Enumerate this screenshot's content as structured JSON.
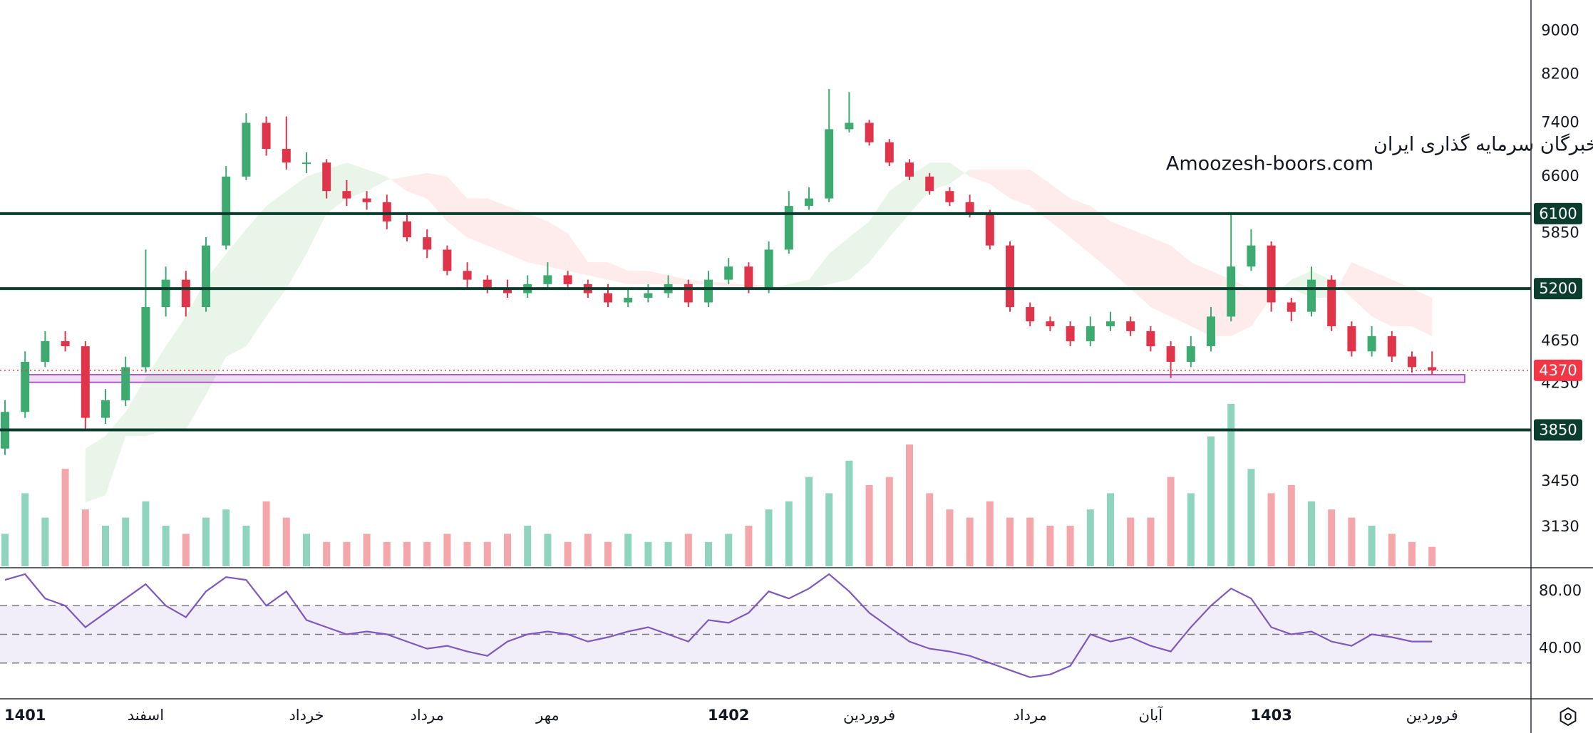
{
  "chart_data": {
    "type": "candlestick",
    "watermark": [
      "انجمن خبرگان سرمایه گذاری ایران",
      "Amoozesh-boors.com"
    ],
    "categories": [
      null,
      "1401",
      null,
      null,
      null,
      null,
      null,
      "اسفند",
      null,
      null,
      null,
      null,
      null,
      null,
      null,
      "خرداد",
      null,
      null,
      null,
      null,
      null,
      "مرداد",
      null,
      null,
      null,
      null,
      null,
      "مهر",
      null,
      null,
      null,
      null,
      null,
      null,
      null,
      null,
      "1402",
      null,
      null,
      null,
      null,
      null,
      null,
      "فروردین",
      null,
      null,
      null,
      null,
      null,
      null,
      null,
      "مرداد",
      null,
      null,
      null,
      null,
      null,
      "آبان",
      null,
      null,
      null,
      null,
      null,
      "1403",
      null,
      null,
      null,
      null,
      null,
      null,
      null,
      "فروردین"
    ],
    "open": [
      3700,
      4000,
      4450,
      4650,
      4600,
      3950,
      4100,
      4400,
      5000,
      5300,
      5000,
      5700,
      6600,
      7400,
      7000,
      6800,
      6800,
      6400,
      6300,
      6250,
      6000,
      5800,
      5650,
      5400,
      5300,
      5200,
      5150,
      5250,
      5350,
      5250,
      5150,
      5050,
      5100,
      5150,
      5250,
      5050,
      5300,
      5450,
      5200,
      5650,
      6200,
      6300,
      7300,
      7400,
      7100,
      6800,
      6600,
      6400,
      6250,
      6100,
      5700,
      5000,
      4850,
      4800,
      4650,
      4800,
      4850,
      4750,
      4600,
      4450,
      4600,
      4900,
      5450,
      5700,
      5050,
      4950,
      5300,
      4800,
      4550,
      4700,
      4500,
      4400
    ],
    "high": [
      4100,
      4550,
      4750,
      4750,
      4650,
      4200,
      4500,
      5650,
      5450,
      5400,
      5800,
      6750,
      7550,
      7500,
      7500,
      6950,
      6850,
      6550,
      6400,
      6350,
      6100,
      5900,
      5700,
      5500,
      5350,
      5300,
      5350,
      5500,
      5400,
      5300,
      5250,
      5200,
      5250,
      5350,
      5300,
      5400,
      5550,
      5500,
      5750,
      6400,
      6450,
      7950,
      7900,
      7450,
      7150,
      6850,
      6650,
      6450,
      6350,
      6150,
      5750,
      5050,
      4900,
      4850,
      4900,
      4950,
      4900,
      4800,
      4650,
      4700,
      5000,
      6100,
      5900,
      5750,
      5100,
      5450,
      5350,
      4850,
      4800,
      4750,
      4550,
      4550
    ],
    "low": [
      3650,
      3950,
      4400,
      4550,
      3850,
      3900,
      4050,
      4350,
      4900,
      4900,
      4950,
      5650,
      6550,
      6900,
      6700,
      6650,
      6300,
      6200,
      6150,
      5900,
      5750,
      5550,
      5350,
      5200,
      5150,
      5100,
      5100,
      5200,
      5200,
      5100,
      5000,
      5000,
      5050,
      5100,
      5000,
      5000,
      5250,
      5150,
      5150,
      5600,
      6150,
      6250,
      7250,
      7050,
      6750,
      6550,
      6350,
      6200,
      6050,
      5650,
      4950,
      4800,
      4750,
      4600,
      4600,
      4750,
      4700,
      4550,
      4300,
      4400,
      4550,
      4850,
      5400,
      4950,
      4850,
      4900,
      4750,
      4500,
      4500,
      4450,
      4350,
      4330
    ],
    "close": [
      4000,
      4450,
      4650,
      4600,
      3950,
      4100,
      4400,
      5000,
      5300,
      5000,
      5700,
      6600,
      7400,
      7000,
      6800,
      6800,
      6400,
      6300,
      6250,
      6000,
      5800,
      5650,
      5400,
      5300,
      5200,
      5150,
      5250,
      5350,
      5250,
      5150,
      5050,
      5100,
      5150,
      5250,
      5050,
      5300,
      5450,
      5200,
      5650,
      6200,
      6300,
      7300,
      7400,
      7100,
      6800,
      6600,
      6400,
      6250,
      6100,
      5700,
      5000,
      4850,
      4800,
      4650,
      4800,
      4850,
      4750,
      4600,
      4450,
      4600,
      4900,
      5450,
      5700,
      5050,
      4950,
      5300,
      4800,
      4550,
      4700,
      4500,
      4400,
      4370
    ],
    "up_color": "#3dab6f",
    "down_color": "#e0344a",
    "log_scale": true,
    "grid": false,
    "ylim": [
      2880,
      9610
    ],
    "yticks": [
      9000,
      8200,
      7400,
      6600,
      5850,
      4650,
      4250,
      3450,
      3130
    ],
    "levels": [
      6100,
      5200,
      3850
    ],
    "level_color": "#0b3d2e",
    "last_price": 4370,
    "last_price_color": "#f23645",
    "zone": [
      4260,
      4330
    ],
    "zone_color": "#b05cc8",
    "volume": {
      "values": [
        20,
        45,
        30,
        60,
        35,
        25,
        30,
        40,
        25,
        20,
        30,
        35,
        25,
        40,
        30,
        20,
        15,
        15,
        20,
        15,
        15,
        15,
        20,
        15,
        15,
        20,
        25,
        20,
        15,
        20,
        15,
        20,
        15,
        15,
        20,
        15,
        20,
        25,
        35,
        40,
        55,
        45,
        65,
        50,
        55,
        75,
        45,
        35,
        30,
        40,
        30,
        30,
        25,
        25,
        35,
        45,
        30,
        30,
        55,
        45,
        80,
        100,
        60,
        45,
        50,
        40,
        35,
        30,
        25,
        20,
        15,
        12
      ],
      "up_color": "#8fd4be",
      "down_color": "#f4a6aa"
    },
    "cloud": {
      "span_a": [
        null,
        null,
        null,
        null,
        3700,
        3800,
        4000,
        4300,
        4600,
        4900,
        5300,
        5600,
        5900,
        6200,
        6400,
        6600,
        6700,
        6800,
        6700,
        6600,
        6400,
        6300,
        6000,
        5800,
        5700,
        5600,
        5500,
        5450,
        5400,
        5350,
        5300,
        5250,
        5250,
        5250,
        5250,
        5250,
        5220,
        5220,
        5200,
        5250,
        5300,
        5600,
        5800,
        6000,
        6400,
        6600,
        6800,
        6800,
        6600,
        6500,
        6300,
        6200,
        6000,
        5800,
        5600,
        5400,
        5200,
        5000,
        4900,
        4800,
        4700,
        4700,
        4800,
        5100,
        5300,
        5400,
        5300,
        5100,
        4900,
        4800,
        4800,
        4700
      ],
      "span_b": [
        null,
        null,
        null,
        null,
        3300,
        3350,
        3800,
        3800,
        3850,
        3850,
        4150,
        4500,
        4600,
        4900,
        5200,
        5600,
        6100,
        6300,
        6400,
        6550,
        6600,
        6650,
        6600,
        6300,
        6300,
        6200,
        6100,
        6000,
        5850,
        5500,
        5500,
        5400,
        5400,
        5350,
        5300,
        5280,
        5260,
        5240,
        5240,
        5200,
        5200,
        5250,
        5300,
        5500,
        5800,
        6100,
        6400,
        6500,
        6700,
        6700,
        6700,
        6700,
        6500,
        6300,
        6200,
        6000,
        5900,
        5800,
        5700,
        5500,
        5400,
        5300,
        5200,
        5200,
        5200,
        5100,
        5100,
        5500,
        5400,
        5300,
        5200,
        5100
      ],
      "up_color": "rgba(76,175,80,0.13)",
      "down_color": "rgba(242,54,69,0.10)"
    },
    "rsi": {
      "values": [
        88,
        92,
        75,
        70,
        55,
        65,
        75,
        85,
        70,
        62,
        80,
        90,
        88,
        70,
        80,
        60,
        55,
        50,
        52,
        50,
        45,
        40,
        42,
        38,
        35,
        45,
        50,
        52,
        50,
        45,
        48,
        52,
        55,
        50,
        45,
        60,
        58,
        65,
        80,
        75,
        82,
        92,
        80,
        65,
        55,
        45,
        40,
        38,
        35,
        30,
        25,
        20,
        22,
        28,
        50,
        45,
        48,
        42,
        38,
        55,
        70,
        82,
        75,
        55,
        50,
        52,
        45,
        42,
        50,
        48,
        45,
        45
      ],
      "color": "#7e57c2",
      "ylim": [
        5,
        96
      ],
      "yticks": [
        {
          "value": 80,
          "label": "80.00"
        },
        {
          "value": 40,
          "label": "40.00"
        }
      ],
      "band": [
        30,
        70
      ],
      "mid": 50,
      "band_color": "rgba(126,87,194,0.10)"
    }
  }
}
